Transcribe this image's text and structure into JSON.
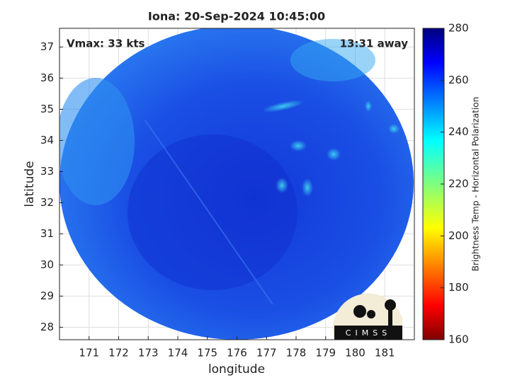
{
  "chart_data": {
    "type": "image",
    "title": "Iona: 20-Sep-2024 10:45:00",
    "annotations": [
      "Vmax: 33 kts",
      "13:31 away"
    ],
    "x_label": "longitude",
    "y_label": "latitude",
    "xlim": [
      170,
      182
    ],
    "ylim": [
      27.6,
      37.6
    ],
    "xticks": [
      171,
      172,
      173,
      174,
      175,
      176,
      177,
      178,
      179,
      180,
      181
    ],
    "yticks": [
      28,
      29,
      30,
      31,
      32,
      33,
      34,
      35,
      36,
      37
    ],
    "grid": true,
    "colorbar": {
      "label": "Brightness Temp - Horizontal Polarization",
      "lim": [
        160,
        280
      ],
      "ticks": [
        160,
        180,
        200,
        220,
        240,
        260,
        280
      ],
      "colormap": "jet"
    },
    "logo": "CIMSS"
  }
}
